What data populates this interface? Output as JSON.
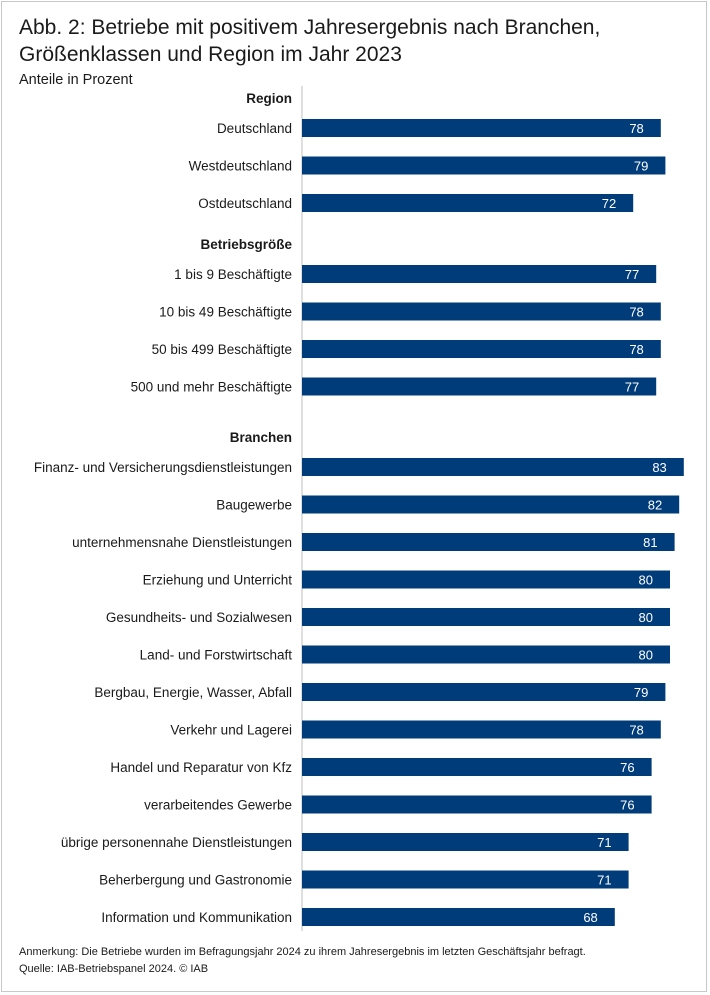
{
  "title_line1": "Abb. 2: Betriebe mit positivem Jahresergebnis nach Branchen,",
  "title_line2": "Größenklassen und Region im Jahr 2023",
  "subtitle": "Anteile in Prozent",
  "note": "Anmerkung: Die Betriebe wurden im Befragungsjahr 2024 zu ihrem Jahresergebnis im letzten Geschäftsjahr befragt.",
  "source": "Quelle: IAB-Betriebspanel 2024.  © IAB",
  "colors": {
    "bar": "#003b7a",
    "axis": "#bfbfbf"
  },
  "chart_data": {
    "type": "bar",
    "orientation": "horizontal",
    "xlim": [
      0,
      85
    ],
    "groups": [
      {
        "name": "Region",
        "categories": [
          "Deutschland",
          "Westdeutschland",
          "Ostdeutschland"
        ],
        "values": [
          78,
          79,
          72
        ]
      },
      {
        "name": "Betriebsgröße",
        "categories": [
          "1 bis 9 Beschäftigte",
          "10 bis 49 Beschäftigte",
          "50 bis 499 Beschäftigte",
          "500 und mehr Beschäftigte"
        ],
        "values": [
          77,
          78,
          78,
          77
        ]
      },
      {
        "name": "Branchen",
        "categories": [
          "Finanz- und Versicherungsdienstleistungen",
          "Baugewerbe",
          "unternehmensnahe Dienstleistungen",
          "Erziehung und Unterricht",
          "Gesundheits- und Sozialwesen",
          "Land- und Forstwirtschaft",
          "Bergbau, Energie, Wasser, Abfall",
          "Verkehr und Lagerei",
          "Handel und Reparatur von Kfz",
          "verarbeitendes Gewerbe",
          "übrige personennahe Dienstleistungen",
          "Beherbergung und Gastronomie",
          "Information und Kommunikation"
        ],
        "values": [
          83,
          82,
          81,
          80,
          80,
          80,
          79,
          78,
          76,
          76,
          71,
          71,
          68
        ]
      }
    ]
  }
}
